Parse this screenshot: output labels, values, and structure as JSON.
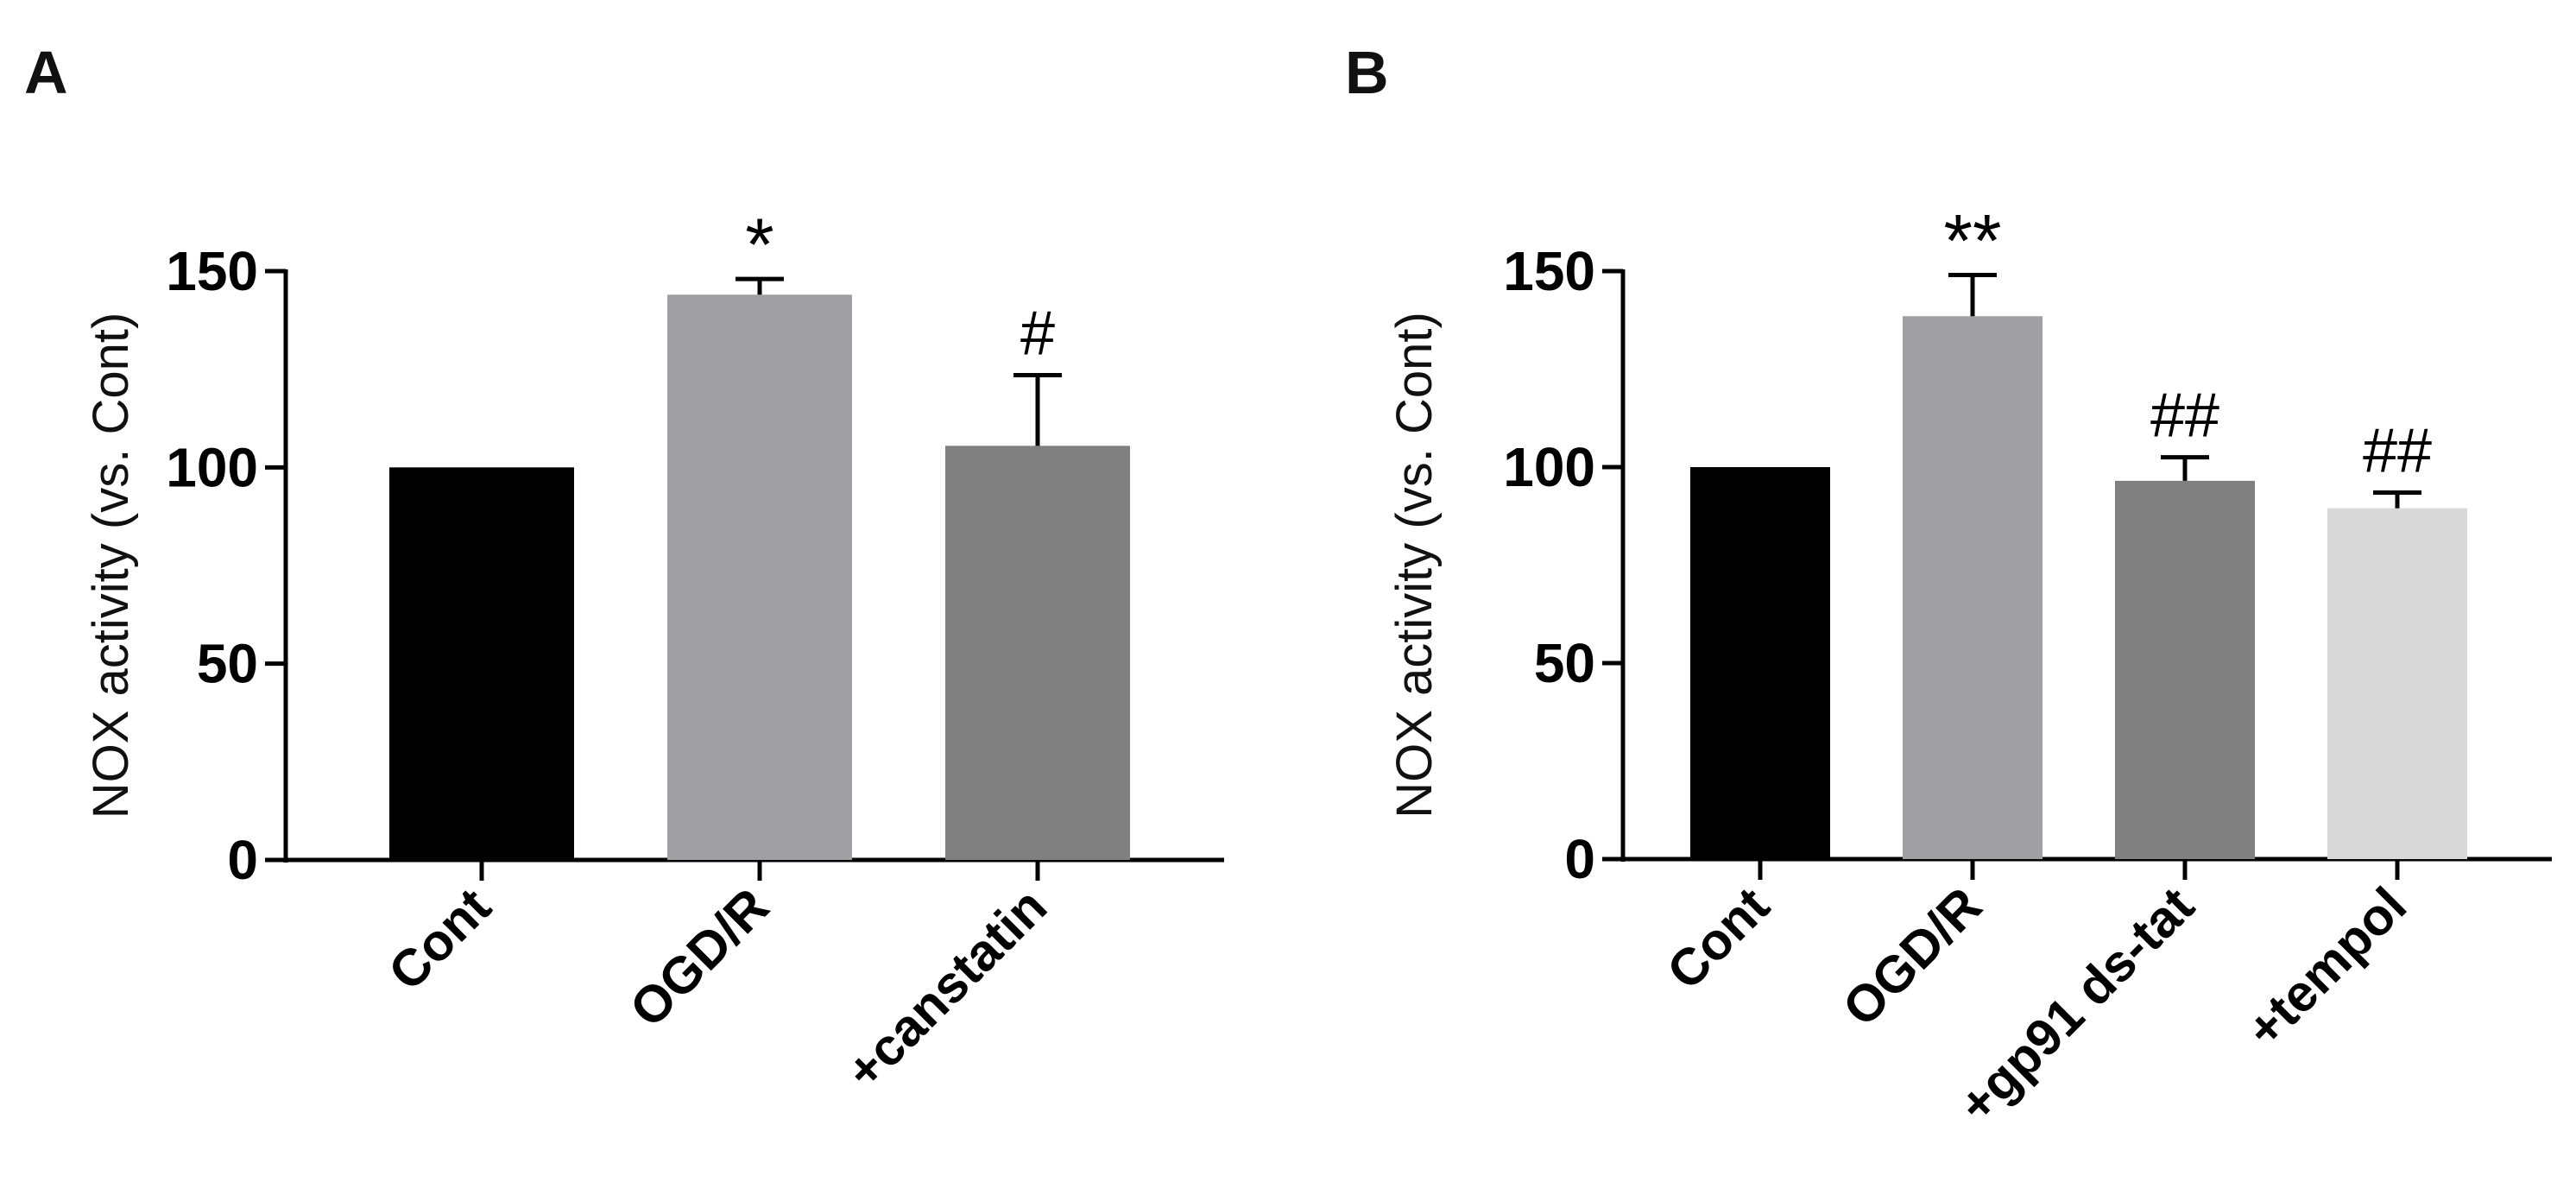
{
  "chart_data": [
    {
      "panel_label": "A",
      "type": "bar",
      "categories": [
        "Cont",
        "OGD/R",
        "+canstatin"
      ],
      "values": [
        100,
        144,
        105.5
      ],
      "errors": [
        0,
        4,
        18
      ],
      "annotations": [
        "",
        "*",
        "#"
      ],
      "colors": [
        "#000000",
        "#a09fa4",
        "#808080"
      ],
      "ylabel": "NOX activity (vs. Cont)",
      "yticks": [
        "0",
        "50",
        "100",
        "150"
      ],
      "ylim": [
        0,
        150
      ],
      "grid": false,
      "legend": "none"
    },
    {
      "panel_label": "B",
      "type": "bar",
      "categories": [
        "Cont",
        "OGD/R",
        "+gp91 ds-tat",
        "+tempol"
      ],
      "values": [
        100,
        138.5,
        96.5,
        89.5
      ],
      "errors": [
        0,
        10.5,
        6,
        4
      ],
      "annotations": [
        "",
        "**",
        "##",
        "##"
      ],
      "colors": [
        "#000000",
        "#a09fa4",
        "#808080",
        "#d9d9d9"
      ],
      "ylabel": "NOX activity (vs. Cont)",
      "yticks": [
        "0",
        "50",
        "100",
        "150"
      ],
      "ylim": [
        0,
        150
      ],
      "grid": false,
      "legend": "none"
    }
  ]
}
